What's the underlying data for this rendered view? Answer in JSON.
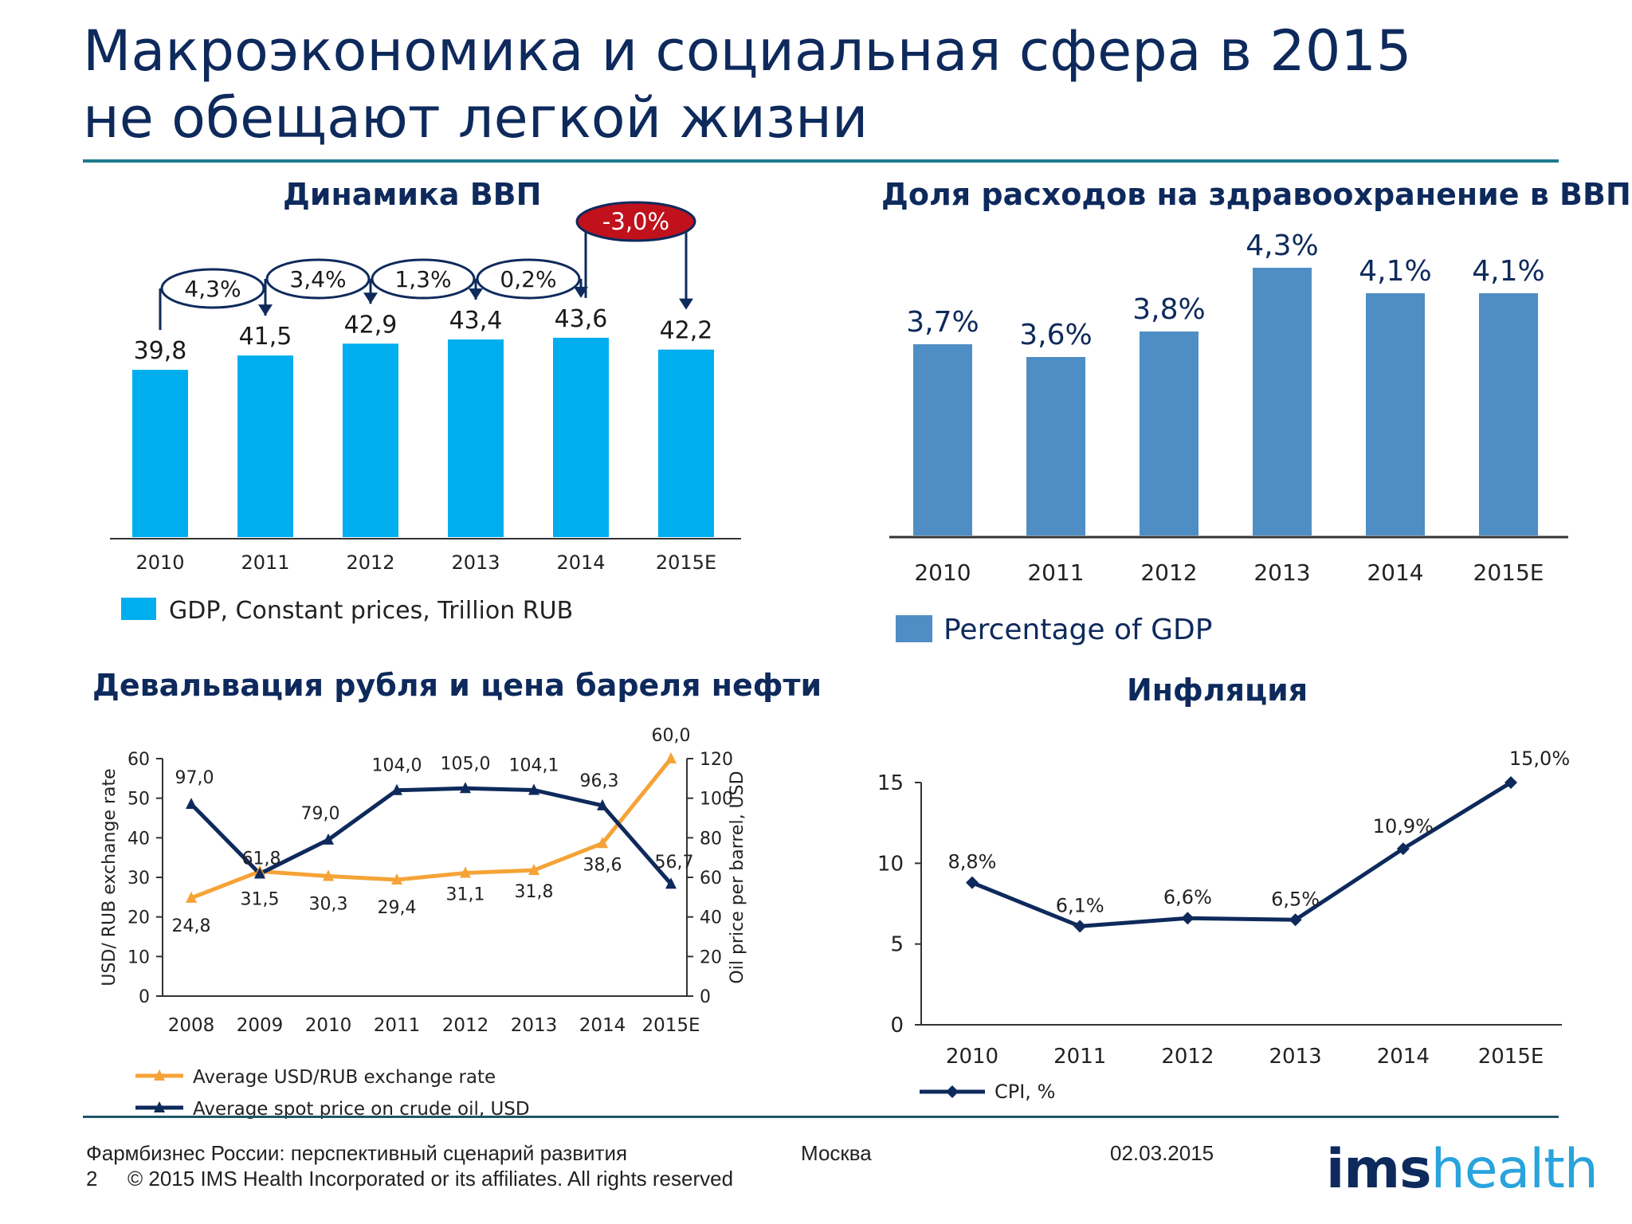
{
  "title": {
    "line1": "Макроэкономика и социальная сфера в 2015",
    "line2": "не обещают легкой жизни"
  },
  "colors": {
    "navy": "#0e2a5c",
    "cyan": "#00aeef",
    "steel": "#4f8ec4",
    "orange": "#f5a337",
    "red": "#c0111c"
  },
  "footer": {
    "subtitle": "Фармбизнес России: перспективный сценарий развития",
    "city": "Москва",
    "date": "02.03.2015",
    "page": "2",
    "copyright": "© 2015 IMS Health Incorporated or its affiliates. All rights reserved",
    "logo_a": "ims",
    "logo_b": "health"
  },
  "chart_data": [
    {
      "id": "gdp",
      "type": "bar",
      "title": "Динамика ВВП",
      "categories": [
        "2010",
        "2011",
        "2012",
        "2013",
        "2014",
        "2015E"
      ],
      "values": [
        39.8,
        41.5,
        42.9,
        43.4,
        43.6,
        42.2
      ],
      "value_labels": [
        "39,8",
        "41,5",
        "42,9",
        "43,4",
        "43,6",
        "42,2"
      ],
      "growth_labels": [
        "4,3%",
        "3,4%",
        "1,3%",
        "0,2%",
        "-3,0%"
      ],
      "legend": "GDP, Constant prices, Trillion RUB",
      "color": "#00aeef"
    },
    {
      "id": "health",
      "type": "bar",
      "title": "Доля расходов на здравоохранение в ВВП",
      "categories": [
        "2010",
        "2011",
        "2012",
        "2013",
        "2014",
        "2015E"
      ],
      "values": [
        3.7,
        3.6,
        3.8,
        4.3,
        4.1,
        4.1
      ],
      "value_labels": [
        "3,7%",
        "3,6%",
        "3,8%",
        "4,3%",
        "4,1%",
        "4,1%"
      ],
      "legend": "Percentage of GDP",
      "color": "#4f8ec4"
    },
    {
      "id": "ruble",
      "type": "line",
      "title": "Девальвация рубля и цена бареля нефти",
      "categories": [
        "2008",
        "2009",
        "2010",
        "2011",
        "2012",
        "2013",
        "2014",
        "2015E"
      ],
      "ylabel_left": "USD/ RUB exchange rate",
      "ylabel_right": "Oil price per barrel, USD",
      "ylim_left": [
        0,
        60
      ],
      "yticks_left": [
        "0",
        "10",
        "20",
        "30",
        "40",
        "50",
        "60"
      ],
      "ylim_right": [
        0,
        120
      ],
      "yticks_right": [
        "0",
        "20",
        "40",
        "60",
        "80",
        "100",
        "120"
      ],
      "series": [
        {
          "name": "Average USD/RUB exchange rate",
          "axis": "left",
          "color": "#f5a337",
          "values": [
            24.8,
            31.5,
            30.3,
            29.4,
            31.1,
            31.8,
            38.6,
            60.0
          ],
          "labels": [
            "24,8",
            "31,5",
            "30,3",
            "29,4",
            "31,1",
            "31,8",
            "38,6",
            "60,0"
          ]
        },
        {
          "name": "Average spot price on crude oil, USD",
          "axis": "right",
          "color": "#0e2a5c",
          "values": [
            97.0,
            61.8,
            79.0,
            104.0,
            105.0,
            104.1,
            96.3,
            56.7
          ],
          "labels": [
            "97,0",
            "61,8",
            "79,0",
            "104,0",
            "105,0",
            "104,1",
            "96,3",
            "56,7"
          ]
        }
      ]
    },
    {
      "id": "inflation",
      "type": "line",
      "title": "Инфляция",
      "categories": [
        "2010",
        "2011",
        "2012",
        "2013",
        "2014",
        "2015E"
      ],
      "ylim": [
        0,
        15
      ],
      "yticks": [
        "0",
        "5",
        "10",
        "15"
      ],
      "series": [
        {
          "name": "CPI, %",
          "color": "#0e2a5c",
          "values": [
            8.8,
            6.1,
            6.6,
            6.5,
            10.9,
            15.0
          ],
          "labels": [
            "8,8%",
            "6,1%",
            "6,6%",
            "6,5%",
            "10,9%",
            "15,0%"
          ]
        }
      ]
    }
  ]
}
